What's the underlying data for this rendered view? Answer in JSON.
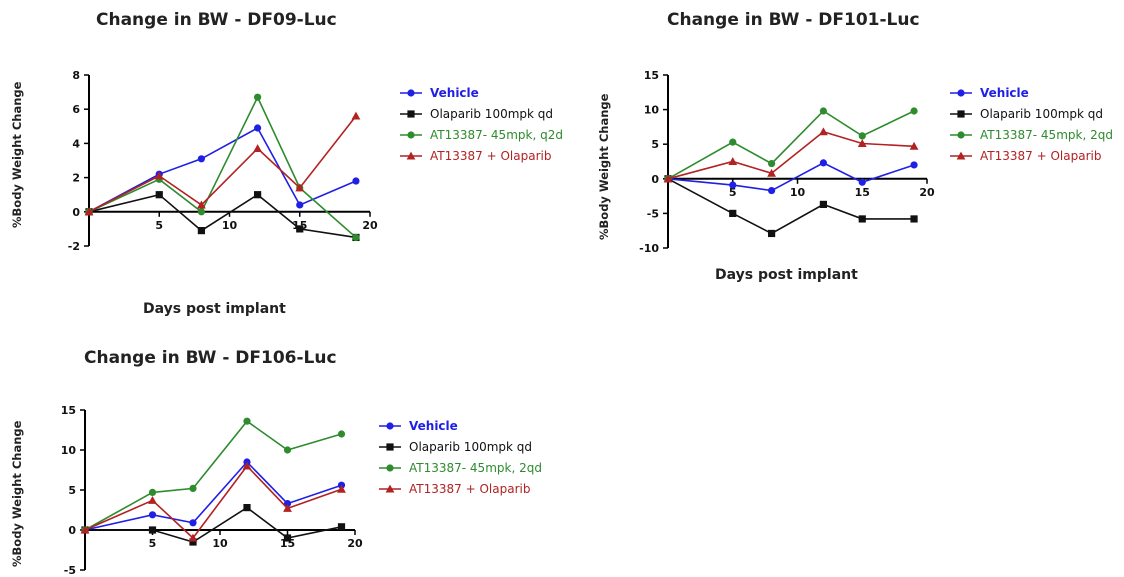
{
  "chart_data": [
    {
      "type": "line",
      "title": "Change in BW - DF09-Luc",
      "xlabel": "Days post implant",
      "ylabel": "%Body  Weight Change",
      "xlim": [
        0,
        20
      ],
      "ylim": [
        -2,
        8
      ],
      "xticks": [
        5,
        10,
        15,
        20
      ],
      "yticks": [
        -2,
        0,
        2,
        4,
        6,
        8
      ],
      "legend_position": "right",
      "grid": false,
      "x": [
        0,
        5,
        8,
        12,
        15,
        19
      ],
      "series": [
        {
          "name": "Vehicle",
          "color": "#1f1fe6",
          "marker": "circle",
          "values": [
            0,
            2.2,
            3.1,
            4.9,
            0.4,
            1.8
          ]
        },
        {
          "name": "Olaparib 100mpk qd",
          "color": "#111111",
          "marker": "square",
          "values": [
            0,
            1.0,
            -1.1,
            1.0,
            -1.0,
            -1.5
          ]
        },
        {
          "name": "AT13387- 45mpk, q2d",
          "color": "#2e8b2e",
          "marker": "circle",
          "values": [
            0,
            1.9,
            0,
            6.7,
            1.4,
            -1.5
          ]
        },
        {
          "name": "AT13387 + Olaparib",
          "color": "#b22222",
          "marker": "triangle",
          "values": [
            0,
            2.1,
            0.4,
            3.7,
            1.4,
            5.6
          ]
        }
      ]
    },
    {
      "type": "line",
      "title": "Change in BW - DF101-Luc",
      "xlabel": "Days post implant",
      "ylabel": "%Body  Weight Change",
      "xlim": [
        0,
        20
      ],
      "ylim": [
        -10,
        15
      ],
      "xticks": [
        5,
        10,
        15,
        20
      ],
      "yticks": [
        -10,
        -5,
        0,
        5,
        10,
        15
      ],
      "legend_position": "right",
      "grid": false,
      "x": [
        0,
        5,
        8,
        12,
        15,
        19
      ],
      "series": [
        {
          "name": "Vehicle",
          "color": "#1f1fe6",
          "marker": "circle",
          "values": [
            0,
            -0.9,
            -1.7,
            2.3,
            -0.5,
            2.0
          ]
        },
        {
          "name": "Olaparib 100mpk qd",
          "color": "#111111",
          "marker": "square",
          "values": [
            0,
            -5.0,
            -7.9,
            -3.7,
            -5.8,
            -5.8
          ]
        },
        {
          "name": "AT13387- 45mpk, 2qd",
          "color": "#2e8b2e",
          "marker": "circle",
          "values": [
            0,
            5.3,
            2.2,
            9.8,
            6.2,
            9.8
          ]
        },
        {
          "name": "AT13387 + Olaparib",
          "color": "#b22222",
          "marker": "triangle",
          "values": [
            0,
            2.5,
            0.8,
            6.8,
            5.1,
            4.7
          ]
        }
      ]
    },
    {
      "type": "line",
      "title": "Change in BW - DF106-Luc",
      "xlabel": "",
      "ylabel": "%Body  Weight Change",
      "xlim": [
        0,
        20
      ],
      "ylim": [
        -5,
        15
      ],
      "xticks": [
        5,
        10,
        15,
        20
      ],
      "yticks": [
        -5,
        0,
        5,
        10,
        15
      ],
      "legend_position": "right",
      "grid": false,
      "x": [
        0,
        5,
        8,
        12,
        15,
        19
      ],
      "series": [
        {
          "name": "Vehicle",
          "color": "#1f1fe6",
          "marker": "circle",
          "values": [
            0,
            1.9,
            0.9,
            8.5,
            3.3,
            5.6
          ]
        },
        {
          "name": "Olaparib 100mpk qd",
          "color": "#111111",
          "marker": "square",
          "values": [
            0,
            0,
            -1.5,
            2.8,
            -1.0,
            0.4
          ]
        },
        {
          "name": "AT13387- 45mpk, 2qd",
          "color": "#2e8b2e",
          "marker": "circle",
          "values": [
            0,
            4.7,
            5.2,
            13.6,
            10.0,
            12.0
          ]
        },
        {
          "name": "AT13387 + Olaparib",
          "color": "#b22222",
          "marker": "triangle",
          "values": [
            0,
            3.7,
            -1.0,
            8.0,
            2.7,
            5.1
          ]
        }
      ]
    }
  ]
}
